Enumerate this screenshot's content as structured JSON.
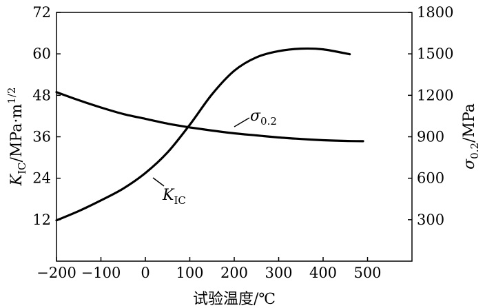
{
  "chart_data": {
    "type": "line",
    "xlabel": "试验温度/℃",
    "ylabel_left": {
      "symbol": "K",
      "subscript": "IC",
      "units": "/MPa·m",
      "exponent": "1/2"
    },
    "ylabel_right": {
      "symbol": "σ",
      "subscript": "0.2",
      "units": "/MPa"
    },
    "xlim": [
      -200,
      600
    ],
    "xticks": [
      -200,
      -100,
      0,
      100,
      200,
      300,
      400,
      500
    ],
    "xtick_labels": [
      "−200",
      "−100",
      "0",
      "100",
      "200",
      "300",
      "400",
      "500"
    ],
    "ylim_left": [
      0,
      72
    ],
    "yticks_left": [
      12,
      24,
      36,
      48,
      60,
      72
    ],
    "ytick_labels_left": [
      "12",
      "24",
      "36",
      "48",
      "60",
      "72"
    ],
    "ylim_right": [
      0,
      1800
    ],
    "yticks_right": [
      300,
      600,
      900,
      1200,
      1500,
      1800
    ],
    "ytick_labels_right": [
      "300",
      "600",
      "900",
      "1200",
      "1500",
      "1800"
    ],
    "grid": false,
    "series": [
      {
        "name": "K_IC",
        "label_main": "K",
        "label_sub": "IC",
        "axis": "left",
        "x": [
          -200,
          -150,
          -100,
          -50,
          0,
          50,
          100,
          150,
          200,
          250,
          300,
          350,
          400,
          460
        ],
        "y": [
          11.8,
          14.5,
          17.6,
          21.0,
          25.5,
          31.5,
          39.5,
          48.3,
          55.1,
          59.0,
          60.8,
          61.5,
          61.3,
          59.9
        ]
      },
      {
        "name": "σ0.2",
        "label_main": "σ",
        "label_sub": "0.2",
        "axis": "right",
        "x": [
          -200,
          -150,
          -100,
          -50,
          0,
          50,
          100,
          150,
          200,
          250,
          300,
          350,
          400,
          450,
          490
        ],
        "y": [
          1223,
          1165,
          1112,
          1065,
          1030,
          995,
          968,
          945,
          925,
          910,
          895,
          884,
          875,
          870,
          868
        ]
      }
    ]
  }
}
